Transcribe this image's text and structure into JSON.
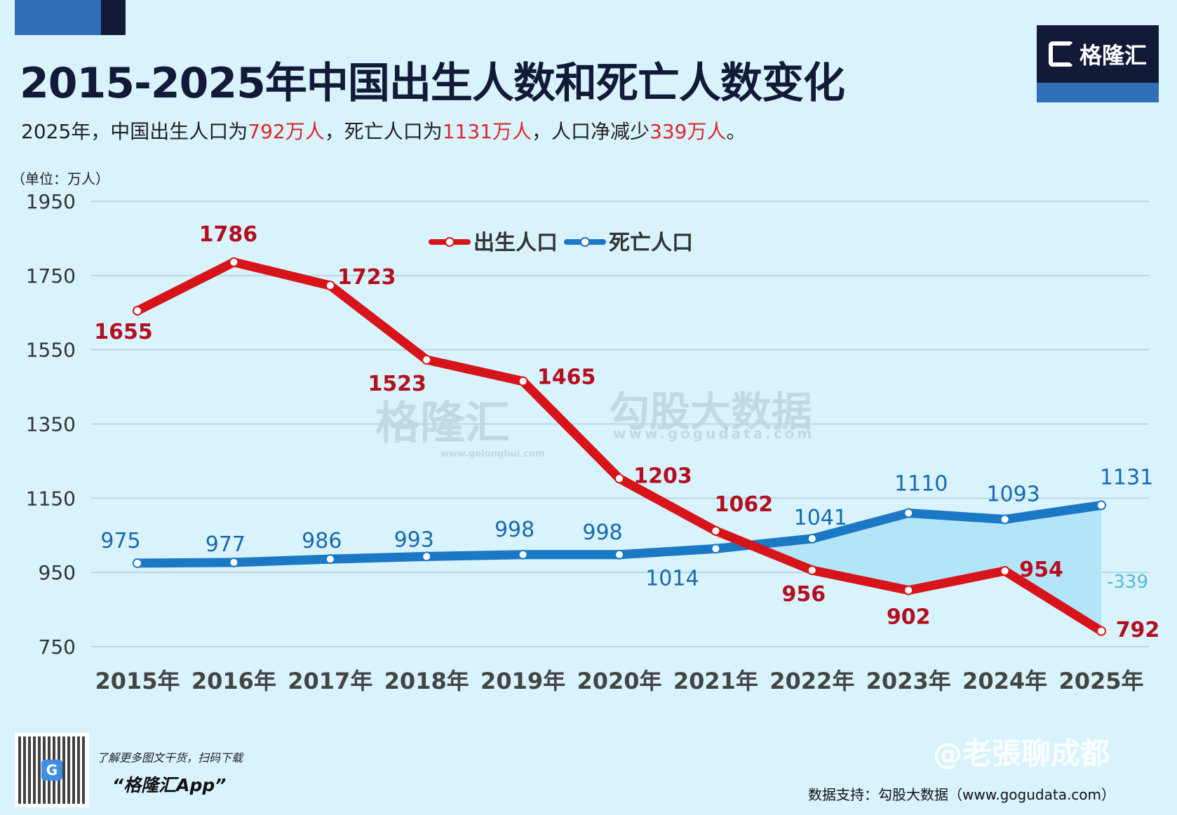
{
  "header": {
    "title": "2015-2025年中国出生人数和死亡人数变化",
    "subtitle_parts": [
      "2025年，中国出生人口为",
      "792万人",
      "，死亡人口为",
      "1131万人",
      "，人口净减少",
      "339万人",
      "。"
    ],
    "logo_text": "格隆汇"
  },
  "colors": {
    "background": "#d9f3fd",
    "birth": "#d7141a",
    "death": "#1b78c4",
    "birth_label": "#b30f1f",
    "death_label": "#1769b0",
    "gap_fill": "#aee3f8",
    "gap_label": "#5ab6d8",
    "highlight": "#e0262b"
  },
  "chart_data": {
    "type": "line",
    "unit_label": "（单位：万人）",
    "categories": [
      "2015年",
      "2016年",
      "2017年",
      "2018年",
      "2019年",
      "2020年",
      "2021年",
      "2022年",
      "2023年",
      "2024年",
      "2025年"
    ],
    "series": [
      {
        "name": "出生人口",
        "values": [
          1655,
          1786,
          1723,
          1523,
          1465,
          1203,
          1062,
          956,
          902,
          954,
          792
        ]
      },
      {
        "name": "死亡人口",
        "values": [
          975,
          977,
          986,
          993,
          998,
          998,
          1014,
          1041,
          1110,
          1093,
          1131
        ]
      }
    ],
    "gap_annotation": "-339",
    "yticks": [
      1950,
      1750,
      1550,
      1350,
      1150,
      950,
      750
    ],
    "ylim": [
      750,
      1950
    ],
    "grid": true,
    "legend": "top-center"
  },
  "watermarks": {
    "gelonghui": "格隆汇",
    "gelonghui_url": "www.gelonghui.com",
    "gogu": "勾股大数据",
    "gogu_url": "www.gogudata.com",
    "weibo": "@老張聊成都"
  },
  "footer": {
    "promo": "了解更多图文干货，扫码下载",
    "app": "“格隆汇App”",
    "source": "数据支持：勾股大数据（www.gogudata.com）"
  }
}
